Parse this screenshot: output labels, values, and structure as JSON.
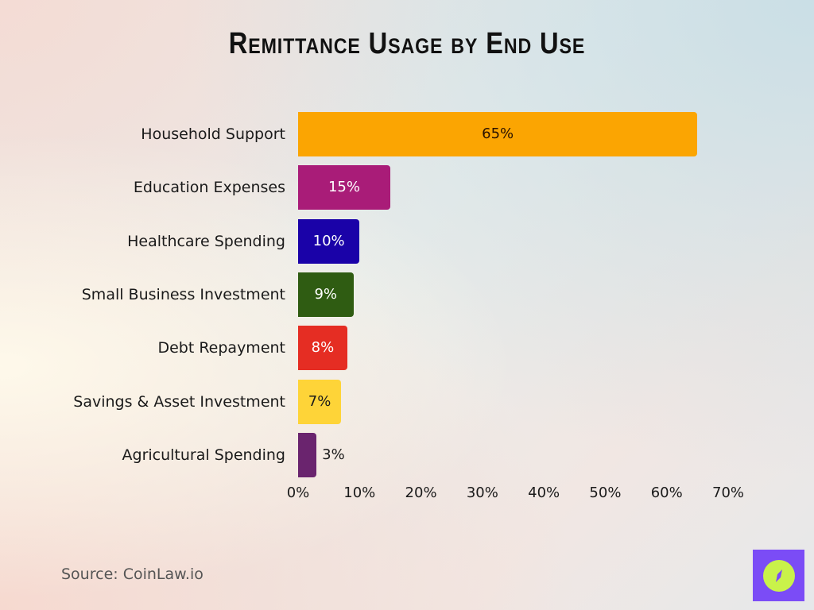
{
  "title": "Remittance Usage by End Use",
  "source": "Source: CoinLaw.io",
  "logo": {
    "icon": "compass-icon",
    "bg_color": "#7b4cf6",
    "fg_color": "#c9f24a"
  },
  "chart_data": {
    "type": "bar",
    "orientation": "horizontal",
    "title": "Remittance Usage by End Use",
    "xlabel": "",
    "ylabel": "",
    "categories": [
      "Household Support",
      "Education Expenses",
      "Healthcare Spending",
      "Small Business Investment",
      "Debt Repayment",
      "Savings & Asset Investment",
      "Agricultural Spending"
    ],
    "values": [
      65,
      15,
      10,
      9,
      8,
      7,
      3
    ],
    "value_labels": [
      "65%",
      "15%",
      "10%",
      "9%",
      "8%",
      "7%",
      "3%"
    ],
    "colors": [
      "#fba502",
      "#a91c78",
      "#1a02a8",
      "#2f5c12",
      "#e52d23",
      "#fed438",
      "#6a246e"
    ],
    "label_colors": [
      "#2a1200",
      "#ffffff",
      "#ffffff",
      "#ffffff",
      "#ffffff",
      "#1a1a1a",
      "#1a1a1a"
    ],
    "xlim": [
      0,
      70
    ],
    "x_ticks": [
      "0%",
      "10%",
      "20%",
      "30%",
      "40%",
      "50%",
      "60%",
      "70%"
    ],
    "grid": false,
    "legend": "none"
  }
}
